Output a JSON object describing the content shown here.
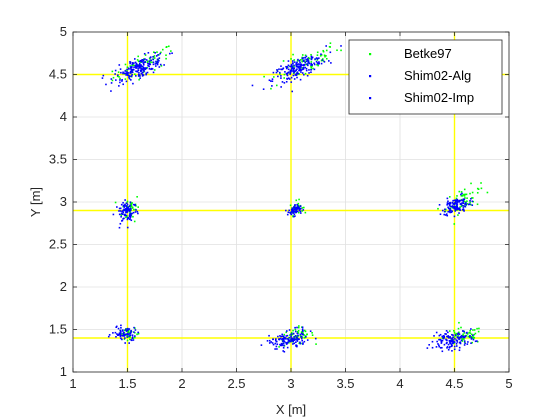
{
  "chart_data": {
    "type": "scatter",
    "xlabel": "X [m]",
    "ylabel": "Y [m]",
    "xlim": [
      1,
      5
    ],
    "ylim": [
      1,
      5
    ],
    "xticks": [
      "1",
      "1.5",
      "2",
      "2.5",
      "3",
      "3.5",
      "4",
      "4.5",
      "5"
    ],
    "yticks": [
      "1",
      "1.5",
      "2",
      "2.5",
      "3",
      "3.5",
      "4",
      "4.5",
      "5"
    ],
    "grid": true,
    "legend_position": "top-right",
    "reference_lines": {
      "color": "#ffff00",
      "x": [
        1.5,
        3,
        4.5
      ],
      "y": [
        1.4,
        2.9,
        4.5
      ]
    },
    "series": [
      {
        "name": "Betke97",
        "color": "#00ff00",
        "clusters": [
          {
            "center": [
              1.65,
              4.62
            ],
            "spread": [
              0.14,
              0.06
            ],
            "tilt": 0.55,
            "count": 70
          },
          {
            "center": [
              3.12,
              4.62
            ],
            "spread": [
              0.16,
              0.07
            ],
            "tilt": 0.6,
            "count": 70
          },
          {
            "center": [
              1.53,
              2.93
            ],
            "spread": [
              0.04,
              0.08
            ],
            "tilt": 0.2,
            "count": 40
          },
          {
            "center": [
              3.05,
              2.93
            ],
            "spread": [
              0.03,
              0.04
            ],
            "tilt": 0.3,
            "count": 30
          },
          {
            "center": [
              4.58,
              3.02
            ],
            "spread": [
              0.08,
              0.07
            ],
            "tilt": 0.5,
            "count": 60
          },
          {
            "center": [
              1.52,
              1.45
            ],
            "spread": [
              0.05,
              0.03
            ],
            "tilt": 0.0,
            "count": 30
          },
          {
            "center": [
              3.05,
              1.42
            ],
            "spread": [
              0.08,
              0.05
            ],
            "tilt": 0.2,
            "count": 55
          },
          {
            "center": [
              4.58,
              1.42
            ],
            "spread": [
              0.09,
              0.05
            ],
            "tilt": 0.1,
            "count": 60
          }
        ]
      },
      {
        "name": "Shim02-Alg",
        "color": "#0000ff",
        "clusters": [
          {
            "center": [
              1.62,
              4.58
            ],
            "spread": [
              0.12,
              0.06
            ],
            "tilt": 0.45,
            "count": 100
          },
          {
            "center": [
              3.08,
              4.58
            ],
            "spread": [
              0.12,
              0.06
            ],
            "tilt": 0.55,
            "count": 100
          },
          {
            "center": [
              1.51,
              2.9
            ],
            "spread": [
              0.04,
              0.07
            ],
            "tilt": 0.1,
            "count": 50
          },
          {
            "center": [
              3.04,
              2.91
            ],
            "spread": [
              0.03,
              0.03
            ],
            "tilt": 0.2,
            "count": 35
          },
          {
            "center": [
              4.52,
              2.96
            ],
            "spread": [
              0.06,
              0.05
            ],
            "tilt": 0.3,
            "count": 60
          },
          {
            "center": [
              1.48,
              1.45
            ],
            "spread": [
              0.05,
              0.04
            ],
            "tilt": 0.0,
            "count": 35
          },
          {
            "center": [
              2.98,
              1.38
            ],
            "spread": [
              0.09,
              0.06
            ],
            "tilt": 0.2,
            "count": 70
          },
          {
            "center": [
              4.5,
              1.38
            ],
            "spread": [
              0.09,
              0.05
            ],
            "tilt": 0.15,
            "count": 70
          }
        ]
      },
      {
        "name": "Shim02-Imp",
        "color": "#0000ff",
        "clusters": [
          {
            "center": [
              1.6,
              4.57
            ],
            "spread": [
              0.11,
              0.05
            ],
            "tilt": 0.4,
            "count": 90
          },
          {
            "center": [
              3.06,
              4.57
            ],
            "spread": [
              0.11,
              0.05
            ],
            "tilt": 0.5,
            "count": 90
          },
          {
            "center": [
              1.49,
              2.88
            ],
            "spread": [
              0.05,
              0.06
            ],
            "tilt": 0.1,
            "count": 45
          },
          {
            "center": [
              3.03,
              2.9
            ],
            "spread": [
              0.03,
              0.03
            ],
            "tilt": 0.2,
            "count": 30
          },
          {
            "center": [
              4.5,
              2.95
            ],
            "spread": [
              0.06,
              0.05
            ],
            "tilt": 0.3,
            "count": 55
          },
          {
            "center": [
              1.46,
              1.44
            ],
            "spread": [
              0.05,
              0.04
            ],
            "tilt": 0.0,
            "count": 35
          },
          {
            "center": [
              2.96,
              1.36
            ],
            "spread": [
              0.09,
              0.05
            ],
            "tilt": 0.2,
            "count": 65
          },
          {
            "center": [
              4.47,
              1.36
            ],
            "spread": [
              0.09,
              0.05
            ],
            "tilt": 0.15,
            "count": 65
          }
        ]
      }
    ]
  }
}
